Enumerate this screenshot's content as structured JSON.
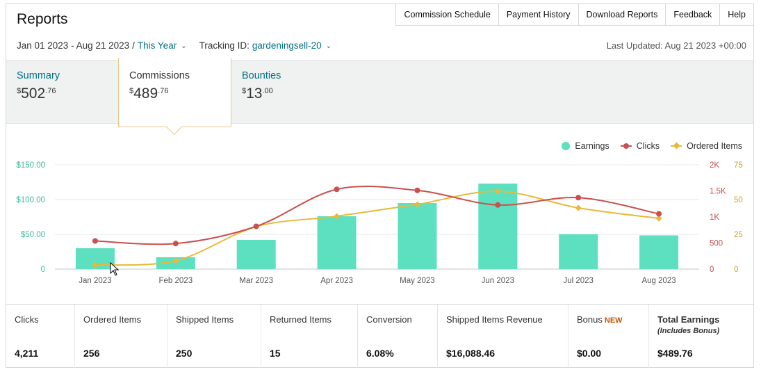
{
  "header": {
    "title": "Reports",
    "nav": [
      "Commission Schedule",
      "Payment History",
      "Download Reports",
      "Feedback",
      "Help"
    ]
  },
  "filters": {
    "date_range": "Jan 01 2023 - Aug 21 2023",
    "separator": "/",
    "period": "This Year",
    "tracking_label": "Tracking ID:",
    "tracking_id": "gardeningsell-20",
    "last_updated": "Last Updated: Aug 21 2023 +00:00"
  },
  "tabs": {
    "summary": {
      "label": "Summary",
      "currency": "$",
      "whole": "502",
      "cents": ".76"
    },
    "commissions": {
      "label": "Commissions",
      "currency": "$",
      "whole": "489",
      "cents": ".76"
    },
    "bounties": {
      "label": "Bounties",
      "currency": "$",
      "whole": "13",
      "cents": ".00"
    }
  },
  "chart_data": {
    "type": "bar",
    "categories": [
      "Jan 2023",
      "Feb 2023",
      "Mar 2023",
      "Apr 2023",
      "May 2023",
      "Jun 2023",
      "Jul 2023",
      "Aug 2023"
    ],
    "series": [
      {
        "name": "Earnings",
        "type": "bar",
        "axis": "left",
        "color": "#5ce0c0",
        "values": [
          30,
          17,
          42,
          76,
          95,
          123,
          50,
          48.5
        ]
      },
      {
        "name": "Clicks",
        "type": "line",
        "axis": "right1",
        "color": "#c9504f",
        "values": [
          540,
          490,
          820,
          1530,
          1510,
          1230,
          1370,
          1060
        ]
      },
      {
        "name": "Ordered Items",
        "type": "line",
        "axis": "right2",
        "color": "#e8b93a",
        "values": [
          3,
          6,
          30.5,
          38,
          46.5,
          56,
          44,
          36.5
        ]
      }
    ],
    "y_left": {
      "ticks": [
        "0",
        "$50.00",
        "$100.00",
        "$150.00"
      ],
      "range": [
        0,
        150
      ]
    },
    "y_right1": {
      "ticks": [
        "0",
        "500",
        "1K",
        "1.5K",
        "2K"
      ],
      "range": [
        0,
        2000
      ]
    },
    "y_right2": {
      "ticks": [
        "0",
        "25",
        "50",
        "75"
      ],
      "range": [
        0,
        75
      ]
    },
    "legend_position": "top-right",
    "grid": true
  },
  "metrics": {
    "clicks": {
      "label": "Clicks",
      "value": "4,211"
    },
    "ordered": {
      "label": "Ordered Items",
      "value": "256"
    },
    "shipped": {
      "label": "Shipped Items",
      "value": "250"
    },
    "returned": {
      "label": "Returned Items",
      "value": "15"
    },
    "conversion": {
      "label": "Conversion",
      "value": "6.08%"
    },
    "revenue": {
      "label": "Shipped Items Revenue",
      "value": "$16,088.46"
    },
    "bonus": {
      "label": "Bonus",
      "badge": "NEW",
      "value": "$0.00"
    },
    "total": {
      "label": "Total Earnings",
      "note": "(Includes Bonus)",
      "value": "$489.76"
    }
  },
  "colors": {
    "link": "#007185",
    "earnings": "#5ce0c0",
    "clicks": "#c9504f",
    "ordered_items": "#e8b93a",
    "tab_border": "#e8c88a"
  }
}
